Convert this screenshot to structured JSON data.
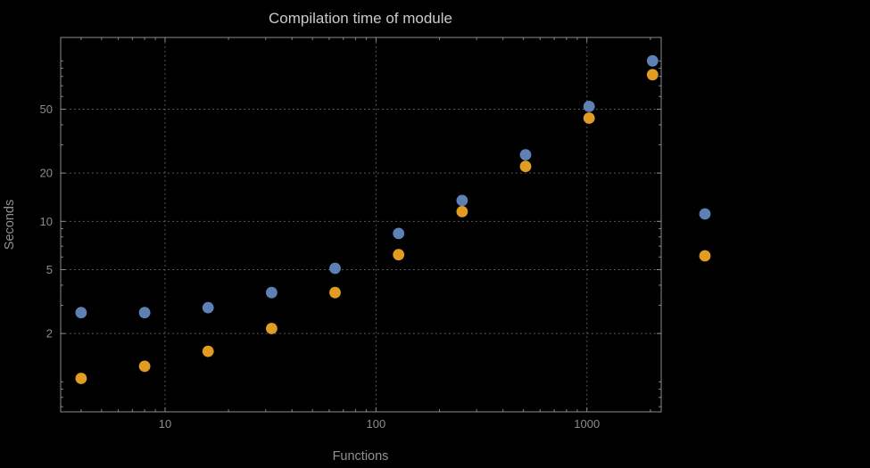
{
  "chart_data": {
    "type": "scatter",
    "title": "Compilation time of module",
    "xlabel": "Functions",
    "ylabel": "Seconds",
    "x_scale": "log",
    "y_scale": "log",
    "x": [
      4,
      8,
      16,
      32,
      64,
      128,
      256,
      512,
      1024,
      2048
    ],
    "series": [
      {
        "name": "blue",
        "color": "#5e81b5",
        "values": [
          2.7,
          2.7,
          2.9,
          3.6,
          5.1,
          8.4,
          13.5,
          26,
          52,
          100
        ]
      },
      {
        "name": "orange",
        "color": "#e19c24",
        "values": [
          1.05,
          1.25,
          1.55,
          2.15,
          3.6,
          6.2,
          11.5,
          22,
          44,
          82
        ]
      }
    ],
    "x_ticks": [
      10,
      100,
      1000
    ],
    "x_tick_labels": [
      "10",
      "100",
      "1000"
    ],
    "y_ticks": [
      2,
      5,
      10,
      20,
      50
    ],
    "y_tick_labels": [
      "2",
      "5",
      "10",
      "20",
      "50"
    ],
    "xlim": [
      3.2,
      2250
    ],
    "ylim": [
      0.65,
      140
    ],
    "grid": true,
    "grid_style": "dotted",
    "legend_position": "right-of-frame",
    "legend": [
      {
        "color": "#5e81b5",
        "label": ""
      },
      {
        "color": "#e19c24",
        "label": ""
      }
    ],
    "colors": {
      "background": "#000000",
      "frame": "#8c8c8c",
      "grid": "#606060",
      "title_text": "#c9cacb",
      "tick_text": "#8a8d8f",
      "label_text": "#8f9294"
    }
  }
}
